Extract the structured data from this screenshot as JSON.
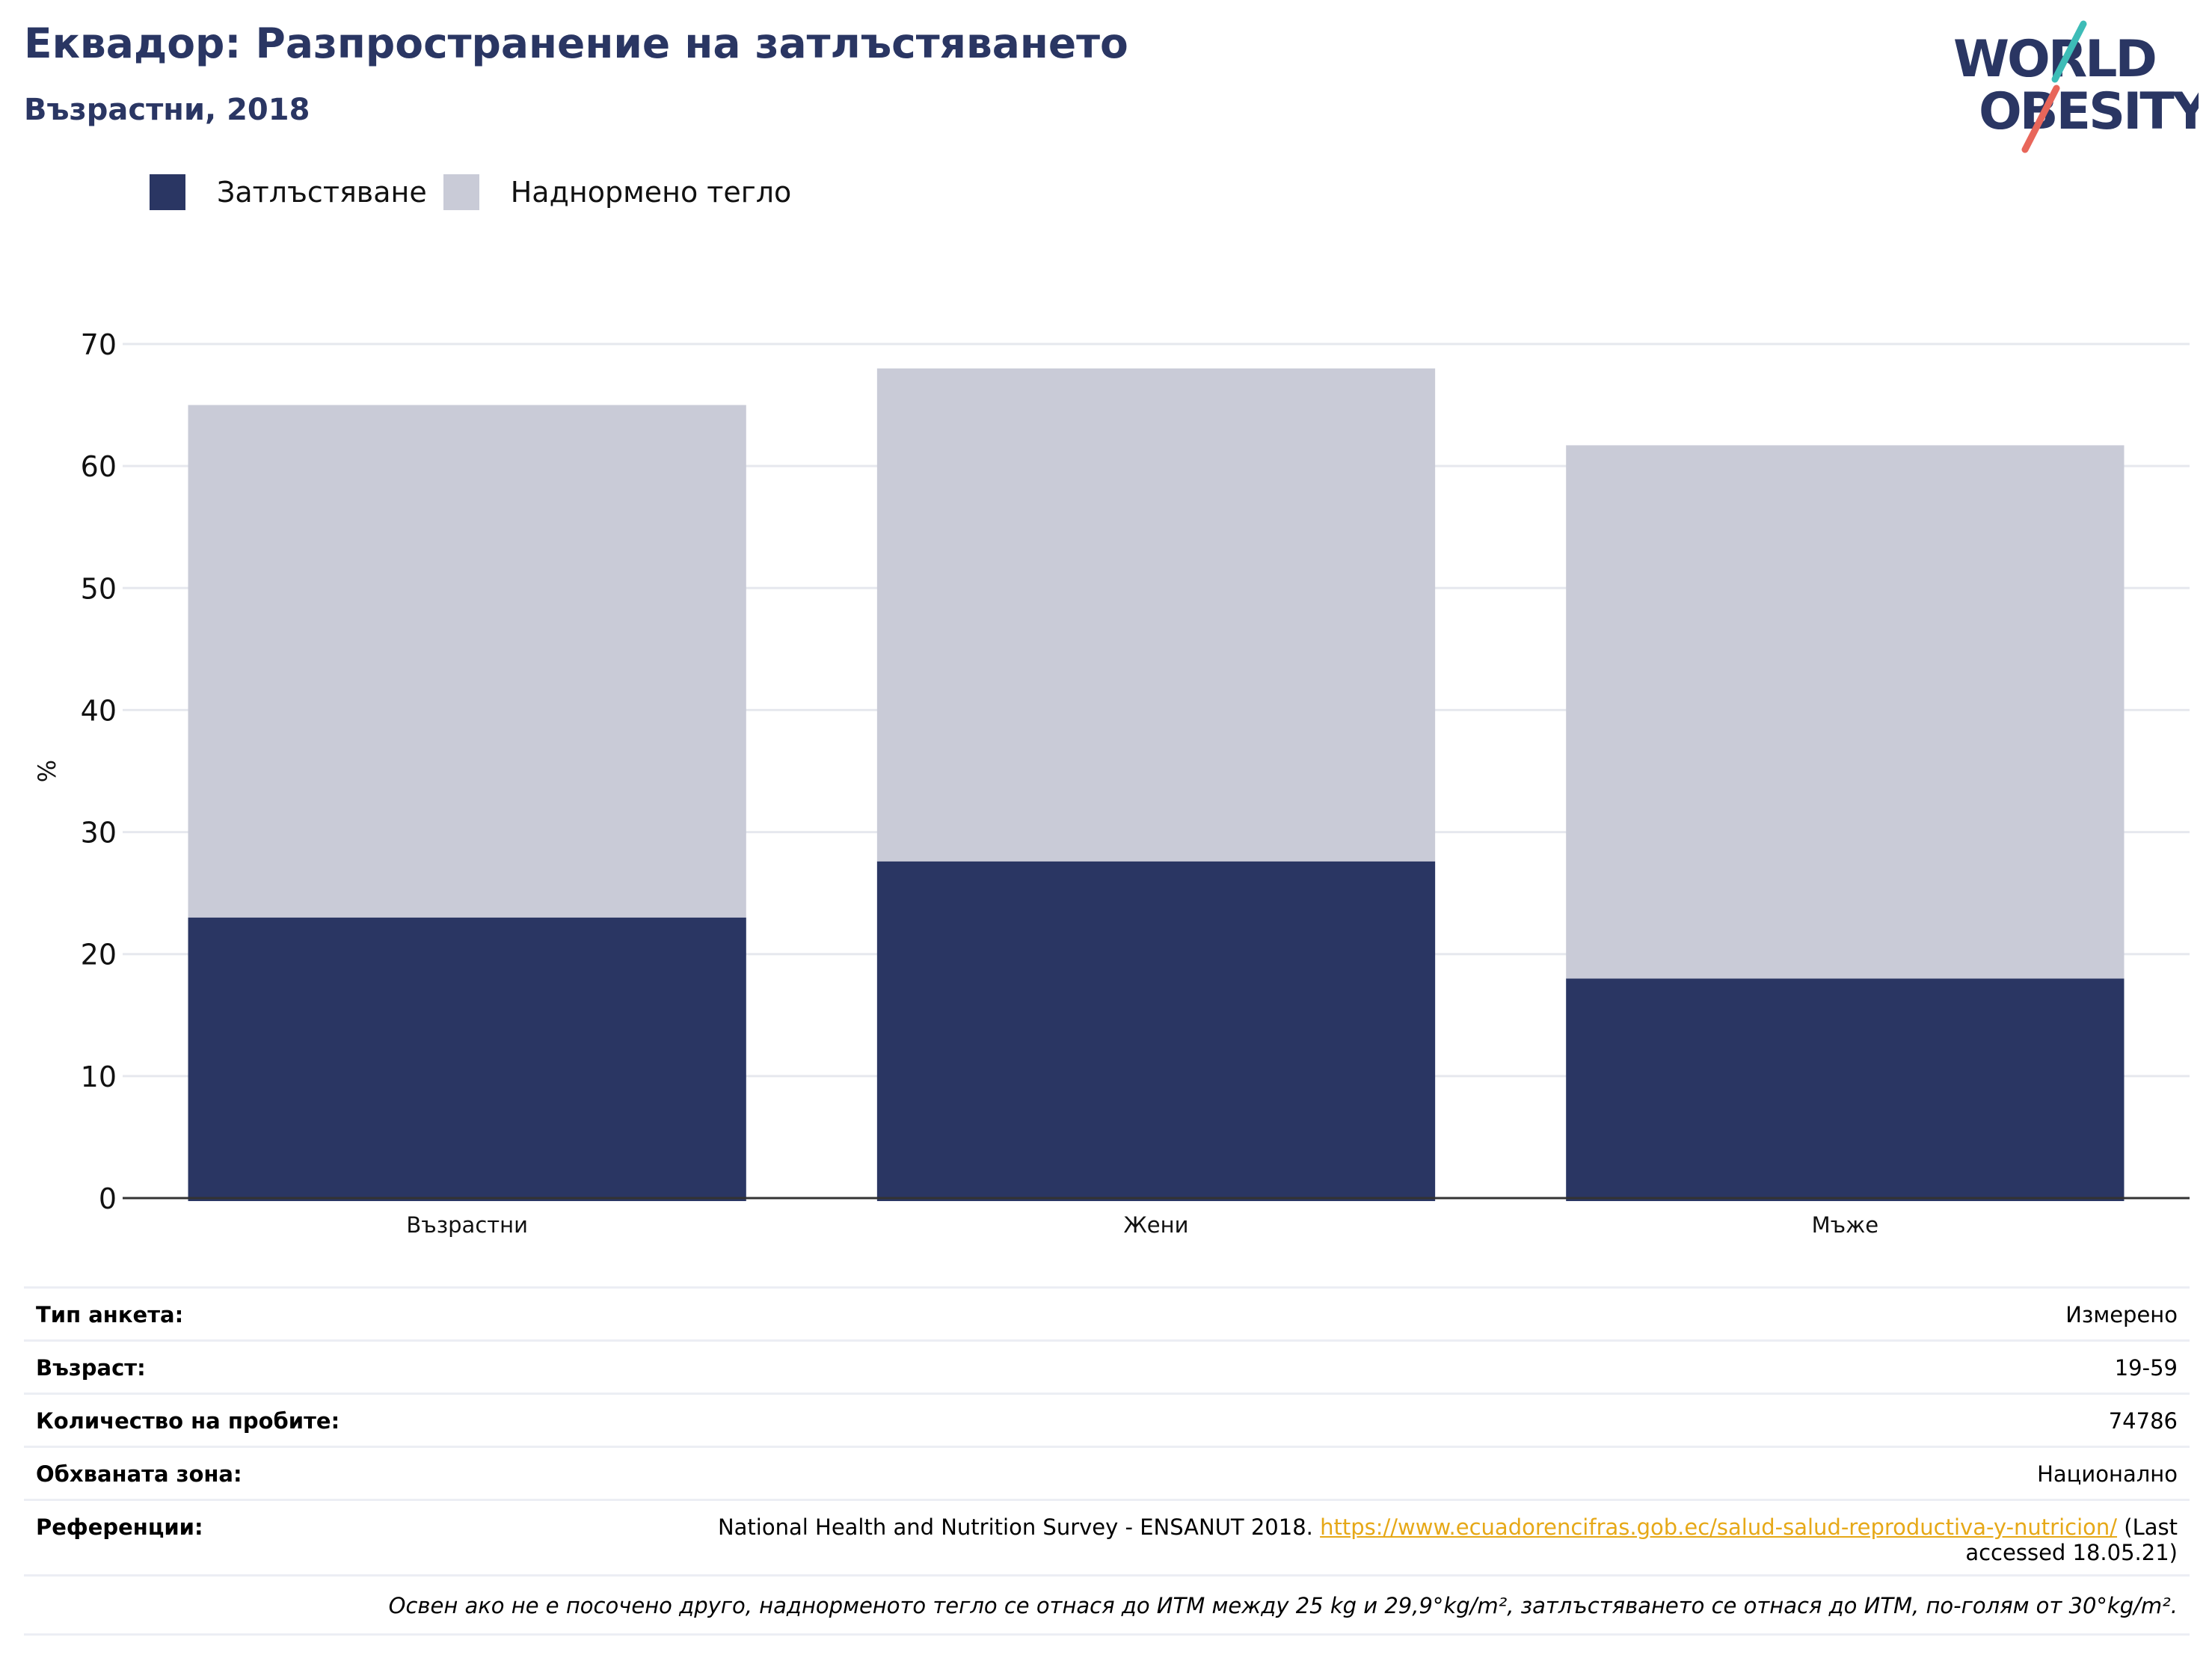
{
  "header": {
    "title": "Еквадор: Разпространение на затлъстяването",
    "subtitle": "Възрастни, 2018"
  },
  "logo": {
    "line1": "WORLD",
    "line2": "OBESITY",
    "colors": {
      "text": "#2a3663",
      "slash_top": "#3dbcb7",
      "slash_bottom": "#e8665a"
    }
  },
  "legend": {
    "obesity_label": "Затлъстяване",
    "overweight_label": "Наднормено тегло"
  },
  "colors": {
    "obesity": "#2a3663",
    "overweight": "#c9cbd7",
    "grid": "#e6e8ee",
    "axis": "#333333",
    "title": "#2a3663",
    "link": "#e6a817"
  },
  "chart_data": {
    "type": "bar",
    "stacked": true,
    "categories": [
      "Възрастни",
      "Жени",
      "Мъже"
    ],
    "series": [
      {
        "name": "Затлъстяване",
        "values": [
          23.0,
          27.6,
          18.0
        ]
      },
      {
        "name": "Наднормено тегло",
        "values": [
          42.0,
          40.4,
          43.7
        ]
      }
    ],
    "ylabel": "%",
    "ylim": [
      0,
      70
    ],
    "yticks": [
      0,
      10,
      20,
      30,
      40,
      50,
      60,
      70
    ],
    "grid": true,
    "legend_position": "top-left"
  },
  "info": {
    "survey_type_label": "Тип анкета:",
    "survey_type_value": "Измерено",
    "age_label": "Възраст:",
    "age_value": "19-59",
    "sample_label": "Количество на пробите:",
    "sample_value": "74786",
    "area_label": "Обхваната зона:",
    "area_value": "Национално",
    "references_label": "Референции:",
    "references_text": "National Health and Nutrition Survey - ENSANUT 2018.",
    "references_link": "https://www.ecuadorencifras.gob.ec/salud-salud-reproductiva-y-nutricion/",
    "references_suffix": "(Last accessed 18.05.21)",
    "note": "Освен ако не е посочено друго, наднорменото тегло се отнася до ИТМ между 25 kg и 29,9°kg/m², затлъстяването се отнася до ИТМ, по-голям от 30°kg/m²."
  }
}
